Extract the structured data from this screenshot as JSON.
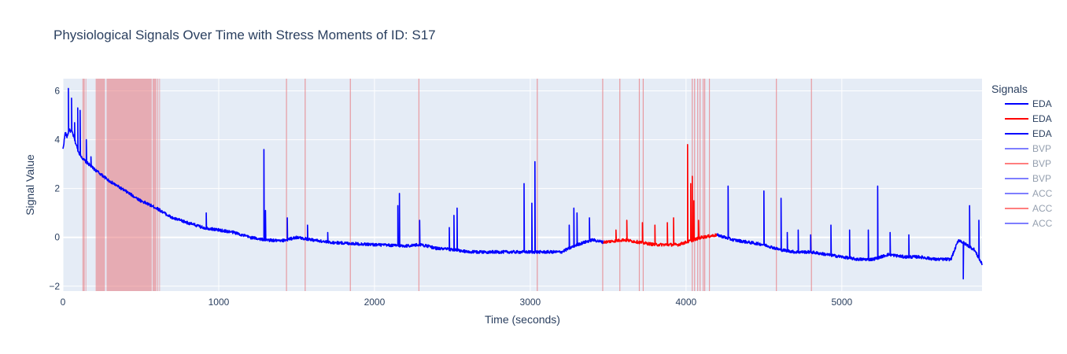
{
  "chart_data": {
    "type": "line",
    "title": "Physiological Signals Over Time with Stress Moments of ID: S17",
    "xlabel": "Time (seconds)",
    "ylabel": "Signal Value",
    "xlim": [
      0,
      5900
    ],
    "ylim": [
      -2.2,
      6.5
    ],
    "x_ticks": [
      0,
      1000,
      2000,
      3000,
      4000,
      5000
    ],
    "x_tick_labels": [
      "0",
      "1000",
      "2000",
      "3000",
      "4000",
      "5000"
    ],
    "y_ticks": [
      -2,
      0,
      2,
      4,
      6
    ],
    "y_tick_labels": [
      "−2",
      "0",
      "2",
      "4",
      "6"
    ],
    "grid": true,
    "legend_title": "Signals",
    "legend_position": "right",
    "series": [
      {
        "name": "EDA",
        "color": "#0000ff",
        "visible": true,
        "segment_range": [
          0,
          3470
        ],
        "anchors": [
          [
            0,
            3.6
          ],
          [
            15,
            4.3
          ],
          [
            25,
            4.1
          ],
          [
            40,
            4.4
          ],
          [
            60,
            4.3
          ],
          [
            80,
            3.9
          ],
          [
            100,
            3.5
          ],
          [
            130,
            3.2
          ],
          [
            200,
            2.8
          ],
          [
            300,
            2.3
          ],
          [
            400,
            1.9
          ],
          [
            500,
            1.5
          ],
          [
            600,
            1.2
          ],
          [
            700,
            0.8
          ],
          [
            800,
            0.6
          ],
          [
            900,
            0.4
          ],
          [
            1000,
            0.3
          ],
          [
            1100,
            0.2
          ],
          [
            1200,
            0.0
          ],
          [
            1300,
            -0.1
          ],
          [
            1400,
            -0.15
          ],
          [
            1500,
            0.0
          ],
          [
            1600,
            -0.1
          ],
          [
            1700,
            -0.2
          ],
          [
            2000,
            -0.3
          ],
          [
            2200,
            -0.35
          ],
          [
            2300,
            -0.3
          ],
          [
            2400,
            -0.45
          ],
          [
            2500,
            -0.5
          ],
          [
            2600,
            -0.6
          ],
          [
            2800,
            -0.6
          ],
          [
            3000,
            -0.6
          ],
          [
            3100,
            -0.6
          ],
          [
            3200,
            -0.6
          ],
          [
            3300,
            -0.3
          ],
          [
            3400,
            -0.1
          ],
          [
            3470,
            -0.2
          ]
        ],
        "spikes": [
          [
            35,
            6.1
          ],
          [
            55,
            5.7
          ],
          [
            75,
            4.7
          ],
          [
            95,
            5.3
          ],
          [
            110,
            5.2
          ],
          [
            150,
            4.0
          ],
          [
            180,
            3.3
          ],
          [
            920,
            1.0
          ],
          [
            1290,
            3.6
          ],
          [
            1300,
            1.1
          ],
          [
            1440,
            0.8
          ],
          [
            1570,
            0.5
          ],
          [
            1700,
            0.2
          ],
          [
            2150,
            1.3
          ],
          [
            2160,
            1.8
          ],
          [
            2290,
            0.7
          ],
          [
            2480,
            0.4
          ],
          [
            2510,
            0.9
          ],
          [
            2530,
            1.2
          ],
          [
            2960,
            2.2
          ],
          [
            3010,
            1.4
          ],
          [
            3030,
            3.1
          ],
          [
            3250,
            0.5
          ],
          [
            3280,
            1.2
          ],
          [
            3300,
            1.0
          ],
          [
            3380,
            0.8
          ]
        ]
      },
      {
        "name": "EDA",
        "color": "#ff0000",
        "visible": true,
        "segment_range": [
          3470,
          4200
        ],
        "anchors": [
          [
            3470,
            -0.2
          ],
          [
            3600,
            -0.1
          ],
          [
            3700,
            -0.2
          ],
          [
            3800,
            -0.3
          ],
          [
            3950,
            -0.3
          ],
          [
            4000,
            -0.2
          ],
          [
            4100,
            0.0
          ],
          [
            4200,
            0.1
          ]
        ],
        "spikes": [
          [
            3550,
            0.3
          ],
          [
            3620,
            0.7
          ],
          [
            3720,
            0.6
          ],
          [
            3800,
            0.5
          ],
          [
            3880,
            0.6
          ],
          [
            3920,
            0.8
          ],
          [
            4010,
            3.8
          ],
          [
            4030,
            2.2
          ],
          [
            4040,
            2.5
          ],
          [
            4050,
            1.5
          ],
          [
            4080,
            0.7
          ]
        ]
      },
      {
        "name": "EDA",
        "color": "#0000ff",
        "visible": true,
        "segment_range": [
          4200,
          5900
        ],
        "anchors": [
          [
            4200,
            0.1
          ],
          [
            4300,
            -0.1
          ],
          [
            4400,
            -0.2
          ],
          [
            4500,
            -0.3
          ],
          [
            4600,
            -0.5
          ],
          [
            4700,
            -0.6
          ],
          [
            4800,
            -0.6
          ],
          [
            4900,
            -0.7
          ],
          [
            5000,
            -0.8
          ],
          [
            5100,
            -0.9
          ],
          [
            5200,
            -0.9
          ],
          [
            5300,
            -0.7
          ],
          [
            5400,
            -0.8
          ],
          [
            5500,
            -0.8
          ],
          [
            5600,
            -0.9
          ],
          [
            5700,
            -0.9
          ],
          [
            5750,
            -0.1
          ],
          [
            5800,
            -0.3
          ],
          [
            5850,
            -0.5
          ],
          [
            5900,
            -1.1
          ]
        ],
        "spikes": [
          [
            4270,
            2.1
          ],
          [
            4500,
            1.9
          ],
          [
            4610,
            1.6
          ],
          [
            4650,
            0.2
          ],
          [
            4720,
            0.3
          ],
          [
            4800,
            0.1
          ],
          [
            4930,
            0.5
          ],
          [
            5050,
            0.3
          ],
          [
            5170,
            0.3
          ],
          [
            5230,
            2.1
          ],
          [
            5310,
            0.2
          ],
          [
            5430,
            0.1
          ],
          [
            5780,
            -1.7
          ],
          [
            5820,
            1.3
          ],
          [
            5880,
            0.7
          ]
        ]
      },
      {
        "name": "BVP",
        "color": "#0000ff",
        "visible": false
      },
      {
        "name": "BVP",
        "color": "#ff0000",
        "visible": false
      },
      {
        "name": "BVP",
        "color": "#0000ff",
        "visible": false
      },
      {
        "name": "ACC",
        "color": "#0000ff",
        "visible": false
      },
      {
        "name": "ACC",
        "color": "#ff0000",
        "visible": false
      },
      {
        "name": "ACC",
        "color": "#0000ff",
        "visible": false
      }
    ],
    "stress_regions": [
      [
        125,
        140
      ],
      [
        145,
        150
      ],
      [
        210,
        270
      ],
      [
        280,
        570
      ],
      [
        575,
        600
      ],
      [
        605,
        612
      ],
      [
        618,
        622
      ]
    ],
    "stress_lines": [
      1435,
      1555,
      1845,
      2285,
      3045,
      3465,
      3575,
      3700,
      3725,
      4040,
      4055,
      4075,
      4090,
      4110,
      4120,
      4150,
      4580,
      4805
    ],
    "colors": {
      "plot_bg": "#e5ecf6",
      "grid": "#ffffff",
      "stress": "#e8777c",
      "text": "#2a3f5f",
      "hidden_legend_text": "#a0a8b8"
    }
  }
}
